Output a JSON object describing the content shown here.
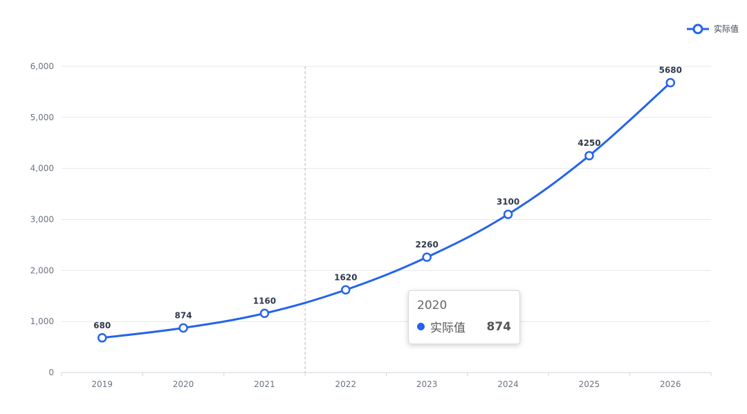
{
  "chart_data": {
    "type": "line",
    "categories": [
      "2019",
      "2020",
      "2021",
      "2022",
      "2023",
      "2024",
      "2025",
      "2026"
    ],
    "series": [
      {
        "name": "实际值",
        "values": [
          680,
          874,
          1160,
          1620,
          2260,
          3100,
          4250,
          5680
        ],
        "color": "#2563eb"
      }
    ],
    "y_ticks": [
      "0",
      "1,000",
      "2,000",
      "3,000",
      "4,000",
      "5,000",
      "6,000"
    ],
    "ylim": [
      0,
      6000
    ],
    "legend": {
      "position": "top-right"
    },
    "grid": true,
    "marker_line_between": [
      "2021",
      "2022"
    ]
  },
  "tooltip": {
    "title": "2020",
    "series_name": "实际值",
    "value": "874"
  }
}
